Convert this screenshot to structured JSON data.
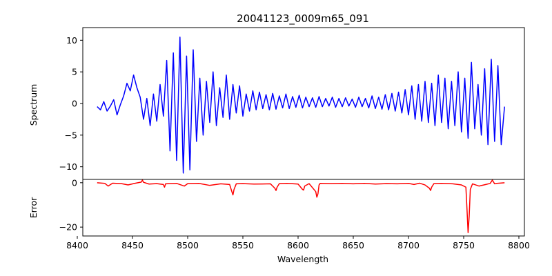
{
  "chart_data": [
    {
      "type": "line",
      "title": "20041123_0009m65_091",
      "xlabel": "",
      "ylabel": "Spectrum",
      "xlim": [
        8405,
        8805
      ],
      "ylim": [
        -12,
        12
      ],
      "yticks": [
        10,
        5,
        0,
        -5,
        -10
      ],
      "grid": false,
      "series": [
        {
          "color": "#0000ff",
          "x": [
            8418,
            8421,
            8424,
            8427,
            8430,
            8433,
            8436,
            8439,
            8442,
            8445,
            8448,
            8451,
            8454,
            8457,
            8460,
            8463,
            8466,
            8469,
            8472,
            8475,
            8478,
            8481,
            8484,
            8487,
            8490,
            8493,
            8496,
            8499,
            8502,
            8505,
            8508,
            8511,
            8514,
            8517,
            8520,
            8523,
            8526,
            8529,
            8532,
            8535,
            8538,
            8541,
            8544,
            8547,
            8550,
            8553,
            8556,
            8559,
            8562,
            8565,
            8568,
            8571,
            8574,
            8577,
            8580,
            8583,
            8586,
            8589,
            8592,
            8595,
            8598,
            8601,
            8604,
            8607,
            8610,
            8613,
            8616,
            8619,
            8622,
            8625,
            8628,
            8631,
            8634,
            8637,
            8640,
            8643,
            8646,
            8649,
            8652,
            8655,
            8658,
            8661,
            8664,
            8667,
            8670,
            8673,
            8676,
            8679,
            8682,
            8685,
            8688,
            8691,
            8694,
            8697,
            8700,
            8703,
            8706,
            8709,
            8712,
            8715,
            8718,
            8721,
            8724,
            8727,
            8730,
            8733,
            8736,
            8739,
            8742,
            8745,
            8748,
            8751,
            8754,
            8757,
            8760,
            8763,
            8766,
            8769,
            8772,
            8775,
            8778,
            8781,
            8784,
            8787
          ],
          "y": [
            -0.5,
            -1.0,
            0.3,
            -1.2,
            -0.4,
            0.6,
            -1.8,
            -0.2,
            1.2,
            3.2,
            2.0,
            4.5,
            2.5,
            1.0,
            -2.5,
            0.8,
            -3.5,
            1.5,
            -2.8,
            3.0,
            -2.0,
            6.8,
            -7.5,
            8.0,
            -9.0,
            10.5,
            -11.0,
            7.5,
            -10.5,
            8.5,
            -6.0,
            4.0,
            -5.0,
            3.5,
            -3.0,
            5.0,
            -3.5,
            2.5,
            -2.2,
            4.5,
            -2.5,
            3.0,
            -1.5,
            2.8,
            -2.0,
            1.5,
            -1.2,
            2.0,
            -1.0,
            1.8,
            -0.8,
            1.4,
            -1.0,
            1.6,
            -0.9,
            1.2,
            -0.7,
            1.5,
            -0.8,
            1.1,
            -0.6,
            1.3,
            -0.7,
            1.0,
            -0.5,
            0.9,
            -0.6,
            1.1,
            -0.5,
            0.8,
            -0.4,
            1.0,
            -0.6,
            0.8,
            -0.5,
            0.9,
            -0.4,
            0.7,
            -0.6,
            1.0,
            -0.5,
            0.8,
            -0.7,
            1.2,
            -0.8,
            1.0,
            -0.9,
            1.4,
            -1.0,
            1.6,
            -1.2,
            1.8,
            -1.5,
            2.2,
            -1.8,
            2.8,
            -2.5,
            3.0,
            -2.8,
            3.5,
            -3.0,
            3.2,
            -3.5,
            4.5,
            -3.0,
            4.0,
            -4.0,
            3.5,
            -3.5,
            5.0,
            -4.5,
            4.0,
            -5.5,
            6.5,
            -4.0,
            3.0,
            -5.0,
            5.5,
            -6.5,
            7.0,
            -6.0,
            6.0,
            -6.5,
            -0.5
          ]
        }
      ]
    },
    {
      "type": "line",
      "title": "",
      "xlabel": "Wavelength",
      "ylabel": "Error",
      "xlim": [
        8405,
        8805
      ],
      "ylim": [
        -24,
        1.5
      ],
      "xticks": [
        8400,
        8450,
        8500,
        8550,
        8600,
        8650,
        8700,
        8750,
        8800
      ],
      "yticks": [
        0,
        -20
      ],
      "grid": false,
      "series": [
        {
          "color": "#ff0000",
          "x": [
            8418,
            8425,
            8428,
            8432,
            8440,
            8446,
            8452,
            8458,
            8459,
            8460,
            8465,
            8472,
            8478,
            8479,
            8480,
            8490,
            8497,
            8500,
            8510,
            8520,
            8530,
            8538,
            8540,
            8541,
            8542,
            8544,
            8550,
            8560,
            8575,
            8579,
            8580,
            8581,
            8583,
            8590,
            8600,
            8604,
            8605,
            8606,
            8610,
            8616,
            8617,
            8618,
            8619,
            8620,
            8630,
            8640,
            8650,
            8660,
            8670,
            8680,
            8690,
            8700,
            8705,
            8710,
            8715,
            8719,
            8720,
            8721,
            8723,
            8730,
            8740,
            8748,
            8752,
            8753,
            8754,
            8755,
            8756,
            8758,
            8764,
            8770,
            8774,
            8776,
            8778,
            8780,
            8787
          ],
          "y": [
            0,
            -0.3,
            -1.5,
            -0.2,
            -0.4,
            -1.0,
            -0.3,
            0.3,
            1.2,
            0.2,
            -0.6,
            -0.4,
            -0.8,
            -2.0,
            -0.5,
            -0.3,
            -1.5,
            -0.4,
            -0.3,
            -1.2,
            -0.5,
            -0.8,
            -4.0,
            -5.5,
            -3.0,
            -0.5,
            -0.4,
            -0.6,
            -0.5,
            -2.5,
            -3.5,
            -2.0,
            -0.4,
            -0.3,
            -0.6,
            -3.0,
            -3.3,
            -1.5,
            -0.4,
            -4.0,
            -6.5,
            -5.0,
            -1.0,
            -0.3,
            -0.4,
            -0.3,
            -0.5,
            -0.3,
            -0.6,
            -0.4,
            -0.5,
            -0.3,
            -0.8,
            -0.2,
            -1.0,
            -2.5,
            -3.5,
            -2.0,
            -0.4,
            -0.3,
            -0.5,
            -1.0,
            -2.0,
            -12.0,
            -22.5,
            -15.0,
            -3.0,
            -0.5,
            -1.5,
            -0.8,
            -0.3,
            1.2,
            -0.5,
            -0.3,
            0
          ]
        }
      ]
    }
  ]
}
